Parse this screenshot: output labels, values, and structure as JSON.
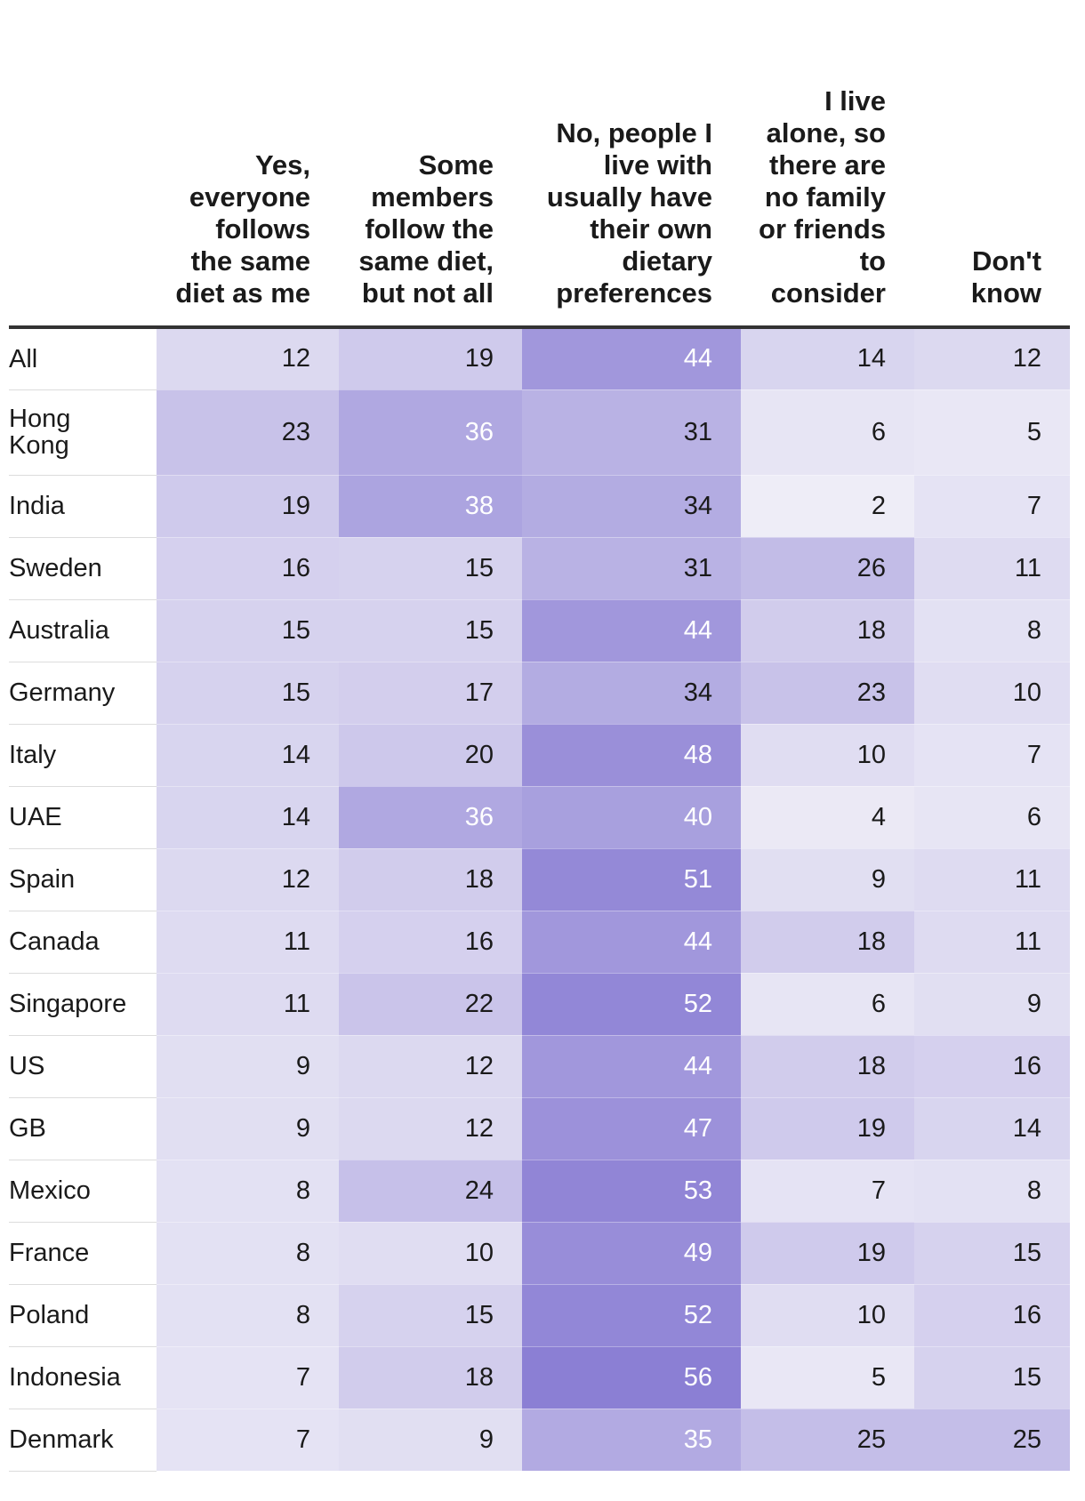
{
  "chart_data": {
    "type": "heatmap",
    "columns": [
      "Yes, everyone follows the same diet as me",
      "Some members follow the same diet, but not all",
      "No, people I live with usually have their own dietary preferences",
      "I live alone, so there are no family or friends to consider",
      "Don't know"
    ],
    "rows": [
      {
        "label": "All",
        "values": [
          12,
          19,
          44,
          14,
          12
        ]
      },
      {
        "label": "Hong Kong",
        "values": [
          23,
          36,
          31,
          6,
          5
        ]
      },
      {
        "label": "India",
        "values": [
          19,
          38,
          34,
          2,
          7
        ]
      },
      {
        "label": "Sweden",
        "values": [
          16,
          15,
          31,
          26,
          11
        ]
      },
      {
        "label": "Australia",
        "values": [
          15,
          15,
          44,
          18,
          8
        ]
      },
      {
        "label": "Germany",
        "values": [
          15,
          17,
          34,
          23,
          10
        ]
      },
      {
        "label": "Italy",
        "values": [
          14,
          20,
          48,
          10,
          7
        ]
      },
      {
        "label": "UAE",
        "values": [
          14,
          36,
          40,
          4,
          6
        ]
      },
      {
        "label": "Spain",
        "values": [
          12,
          18,
          51,
          9,
          11
        ]
      },
      {
        "label": "Canada",
        "values": [
          11,
          16,
          44,
          18,
          11
        ]
      },
      {
        "label": "Singapore",
        "values": [
          11,
          22,
          52,
          6,
          9
        ]
      },
      {
        "label": "US",
        "values": [
          9,
          12,
          44,
          18,
          16
        ]
      },
      {
        "label": "GB",
        "values": [
          9,
          12,
          47,
          19,
          14
        ]
      },
      {
        "label": "Mexico",
        "values": [
          8,
          24,
          53,
          7,
          8
        ]
      },
      {
        "label": "France",
        "values": [
          8,
          10,
          49,
          19,
          15
        ]
      },
      {
        "label": "Poland",
        "values": [
          8,
          15,
          52,
          10,
          16
        ]
      },
      {
        "label": "Indonesia",
        "values": [
          7,
          18,
          56,
          5,
          15
        ]
      },
      {
        "label": "Denmark",
        "values": [
          7,
          9,
          35,
          25,
          25
        ]
      }
    ],
    "color_scale": {
      "low": "#f2f1f8",
      "high": "#8b7fd4",
      "max_value": 56,
      "light_text_threshold": 35
    },
    "colors": {
      "text_dark": "#1a1a1a",
      "text_light": "#ffffff"
    }
  }
}
